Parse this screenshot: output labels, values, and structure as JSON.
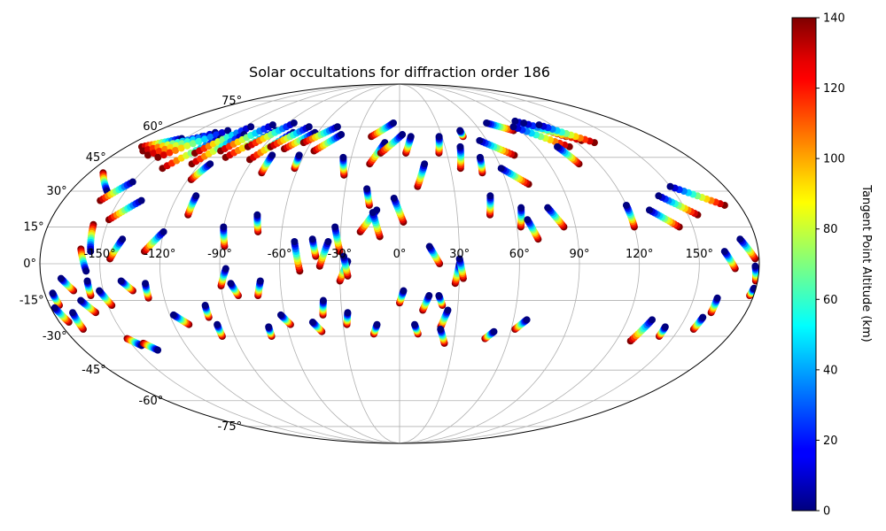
{
  "chart_data": {
    "type": "scatter",
    "projection": "mollweide",
    "title": "Solar occultations for diffraction order 186",
    "xlabel": "",
    "ylabel": "",
    "lon_ticks": [
      "-150°",
      "-120°",
      "-90°",
      "-60°",
      "-30°",
      "0°",
      "30°",
      "60°",
      "90°",
      "120°",
      "150°"
    ],
    "lon_tick_values": [
      -150,
      -120,
      -90,
      -60,
      -30,
      0,
      30,
      60,
      90,
      120,
      150
    ],
    "lat_ticks": [
      "75°",
      "60°",
      "45°",
      "30°",
      "15°",
      "0°",
      "-15°",
      "-30°",
      "-45°",
      "-60°",
      "-75°"
    ],
    "lat_tick_values": [
      75,
      60,
      45,
      30,
      15,
      0,
      -15,
      -30,
      -45,
      -60,
      -75
    ],
    "grid": true,
    "colorbar": {
      "label": "Tangent Point Altitude (km)",
      "range": [
        0,
        140
      ],
      "ticks": [
        "0",
        "20",
        "40",
        "60",
        "80",
        "100",
        "120",
        "140"
      ],
      "tick_values": [
        0,
        20,
        40,
        60,
        80,
        100,
        120,
        140
      ],
      "colormap": "jet"
    },
    "occultations": [
      {
        "lon_start": -172,
        "lat_start": 38,
        "lon_end": -160,
        "lat_end": 30
      },
      {
        "lon_start": -170,
        "lat_start": 50,
        "lon_end": -152,
        "lat_end": 54
      },
      {
        "lon_start": -165,
        "lat_start": 48,
        "lon_end": -140,
        "lat_end": 55
      },
      {
        "lon_start": -158,
        "lat_start": 46,
        "lon_end": -135,
        "lat_end": 57
      },
      {
        "lon_start": -150,
        "lat_start": 45,
        "lon_end": -128,
        "lat_end": 58
      },
      {
        "lon_start": -140,
        "lat_start": 40,
        "lon_end": -125,
        "lat_end": 54
      },
      {
        "lon_start": -130,
        "lat_start": 47,
        "lon_end": -115,
        "lat_end": 60
      },
      {
        "lon_start": -125,
        "lat_start": 42,
        "lon_end": -112,
        "lat_end": 56
      },
      {
        "lon_start": -115,
        "lat_start": 48,
        "lon_end": -100,
        "lat_end": 61
      },
      {
        "lon_start": -108,
        "lat_start": 45,
        "lon_end": -92,
        "lat_end": 58
      },
      {
        "lon_start": -100,
        "lat_start": 50,
        "lon_end": -85,
        "lat_end": 62
      },
      {
        "lon_start": -92,
        "lat_start": 44,
        "lon_end": -78,
        "lat_end": 57
      },
      {
        "lon_start": -85,
        "lat_start": 50,
        "lon_end": -70,
        "lat_end": 60
      },
      {
        "lon_start": -75,
        "lat_start": 49,
        "lon_end": -62,
        "lat_end": 57
      },
      {
        "lon_start": -65,
        "lat_start": 52,
        "lon_end": -48,
        "lat_end": 60
      },
      {
        "lon_start": -55,
        "lat_start": 48,
        "lon_end": -42,
        "lat_end": 56
      },
      {
        "lon_start": -160,
        "lat_start": 6,
        "lon_end": -157,
        "lat_end": -3
      },
      {
        "lon_start": -157,
        "lat_start": 16,
        "lon_end": -155,
        "lat_end": 5
      },
      {
        "lon_start": -160,
        "lat_start": 26,
        "lon_end": -150,
        "lat_end": 34
      },
      {
        "lon_start": -150,
        "lat_start": 18,
        "lon_end": -138,
        "lat_end": 26
      },
      {
        "lon_start": -145,
        "lat_start": 2,
        "lon_end": -140,
        "lat_end": 10
      },
      {
        "lon_start": -128,
        "lat_start": 5,
        "lon_end": -120,
        "lat_end": 13
      },
      {
        "lon_start": -110,
        "lat_start": 20,
        "lon_end": -110,
        "lat_end": 28
      },
      {
        "lon_start": -118,
        "lat_start": 35,
        "lon_end": -114,
        "lat_end": 42
      },
      {
        "lon_start": -88,
        "lat_start": 7,
        "lon_end": -90,
        "lat_end": 15
      },
      {
        "lon_start": -80,
        "lat_start": 38,
        "lon_end": -80,
        "lat_end": 46
      },
      {
        "lon_start": -72,
        "lat_start": 13,
        "lon_end": -74,
        "lat_end": 20
      },
      {
        "lon_start": -62,
        "lat_start": 40,
        "lon_end": -63,
        "lat_end": 46
      },
      {
        "lon_start": -50,
        "lat_start": -3,
        "lon_end": -53,
        "lat_end": 9
      },
      {
        "lon_start": -42,
        "lat_start": 3,
        "lon_end": -44,
        "lat_end": 10
      },
      {
        "lon_start": -40,
        "lat_start": -1,
        "lon_end": -36,
        "lat_end": 9
      },
      {
        "lon_start": -30,
        "lat_start": 5,
        "lon_end": -33,
        "lat_end": 15
      },
      {
        "lon_start": -30,
        "lat_start": -7,
        "lon_end": -26,
        "lat_end": 1
      },
      {
        "lon_start": -26,
        "lat_start": -5,
        "lon_end": -28,
        "lat_end": 3
      },
      {
        "lon_start": -32,
        "lat_start": 37,
        "lon_end": -35,
        "lat_end": 45
      },
      {
        "lon_start": -20,
        "lat_start": 13,
        "lon_end": -12,
        "lat_end": 22
      },
      {
        "lon_start": -10,
        "lat_start": 11,
        "lon_end": -14,
        "lat_end": 21
      },
      {
        "lon_start": -16,
        "lat_start": 24,
        "lon_end": -18,
        "lat_end": 31
      },
      {
        "lon_start": -18,
        "lat_start": 42,
        "lon_end": -10,
        "lat_end": 52
      },
      {
        "lon_start": -12,
        "lat_start": 47,
        "lon_end": 2,
        "lat_end": 56
      },
      {
        "lon_start": -20,
        "lat_start": 55,
        "lon_end": -5,
        "lat_end": 62
      },
      {
        "lon_start": 2,
        "lat_start": 17,
        "lon_end": -3,
        "lat_end": 27
      },
      {
        "lon_start": 0,
        "lat_start": -16,
        "lon_end": 2,
        "lat_end": -11
      },
      {
        "lon_start": 4,
        "lat_start": 47,
        "lon_end": 8,
        "lat_end": 55
      },
      {
        "lon_start": 10,
        "lat_start": 32,
        "lon_end": 15,
        "lat_end": 42
      },
      {
        "lon_start": 20,
        "lat_start": 0,
        "lon_end": 15,
        "lat_end": 7
      },
      {
        "lon_start": 12,
        "lat_start": -19,
        "lon_end": 15,
        "lat_end": -13
      },
      {
        "lon_start": 22,
        "lat_start": -17,
        "lon_end": 20,
        "lat_end": -13
      },
      {
        "lon_start": 28,
        "lat_start": -8,
        "lon_end": 30,
        "lat_end": 0
      },
      {
        "lon_start": 32,
        "lat_start": -6,
        "lon_end": 30,
        "lat_end": 2
      },
      {
        "lon_start": 22,
        "lat_start": -26,
        "lon_end": 25,
        "lat_end": -19
      },
      {
        "lon_start": 25,
        "lat_start": -33,
        "lon_end": 22,
        "lat_end": -27
      },
      {
        "lon_start": 25,
        "lat_start": 47,
        "lon_end": 28,
        "lat_end": 55
      },
      {
        "lon_start": 36,
        "lat_start": 40,
        "lon_end": 40,
        "lat_end": 50
      },
      {
        "lon_start": 45,
        "lat_start": 55,
        "lon_end": 45,
        "lat_end": 58
      },
      {
        "lon_start": 47,
        "lat_start": 20,
        "lon_end": 49,
        "lat_end": 28
      },
      {
        "lon_start": 48,
        "lat_start": 38,
        "lon_end": 50,
        "lat_end": 45
      },
      {
        "lon_start": 47,
        "lat_start": -31,
        "lon_end": 51,
        "lat_end": -28
      },
      {
        "lon_start": 62,
        "lat_start": 15,
        "lon_end": 64,
        "lat_end": 23
      },
      {
        "lon_start": 62,
        "lat_start": -27,
        "lon_end": 67,
        "lat_end": -23
      },
      {
        "lon_start": 70,
        "lat_start": 10,
        "lon_end": 66,
        "lat_end": 18
      },
      {
        "lon_start": 72,
        "lat_start": 33,
        "lon_end": 60,
        "lat_end": 40
      },
      {
        "lon_start": 72,
        "lat_start": 46,
        "lon_end": 55,
        "lat_end": 53
      },
      {
        "lon_start": 84,
        "lat_start": 15,
        "lon_end": 78,
        "lat_end": 23
      },
      {
        "lon_start": 85,
        "lat_start": 58,
        "lon_end": 70,
        "lat_end": 62
      },
      {
        "lon_start": 112,
        "lat_start": 50,
        "lon_end": 88,
        "lat_end": 60
      },
      {
        "lon_start": 118,
        "lat_start": 55,
        "lon_end": 95,
        "lat_end": 63
      },
      {
        "lon_start": 125,
        "lat_start": 53,
        "lon_end": 100,
        "lat_end": 62
      },
      {
        "lon_start": 132,
        "lat_start": 52,
        "lon_end": 110,
        "lat_end": 61
      },
      {
        "lon_start": 108,
        "lat_start": 42,
        "lon_end": 104,
        "lat_end": 50
      },
      {
        "lon_start": 120,
        "lat_start": 15,
        "lon_end": 120,
        "lat_end": 24
      },
      {
        "lon_start": 143,
        "lat_start": 15,
        "lon_end": 131,
        "lat_end": 22
      },
      {
        "lon_start": 155,
        "lat_start": 20,
        "lon_end": 140,
        "lat_end": 28
      },
      {
        "lon_start": 172,
        "lat_start": 24,
        "lon_end": 150,
        "lat_end": 32
      },
      {
        "lon_start": 128,
        "lat_start": -32,
        "lon_end": 133,
        "lat_end": -23
      },
      {
        "lon_start": 142,
        "lat_start": -30,
        "lon_end": 142,
        "lat_end": -26
      },
      {
        "lon_start": 158,
        "lat_start": -27,
        "lon_end": 159,
        "lat_end": -22
      },
      {
        "lon_start": 162,
        "lat_start": -20,
        "lon_end": 162,
        "lat_end": -14
      },
      {
        "lon_start": 168,
        "lat_start": -2,
        "lon_end": 163,
        "lat_end": 5
      },
      {
        "lon_start": 178,
        "lat_start": 2,
        "lon_end": 172,
        "lat_end": 10
      },
      {
        "lon_start": 179,
        "lat_start": -7,
        "lon_end": 178,
        "lat_end": -1
      },
      {
        "lon_start": 178,
        "lat_start": -13,
        "lon_end": 179,
        "lat_end": -10
      },
      {
        "lon_start": -175,
        "lat_start": -17,
        "lon_end": -176,
        "lat_end": -12
      },
      {
        "lon_start": -175,
        "lat_start": -24,
        "lon_end": -178,
        "lat_end": -18
      },
      {
        "lon_start": -170,
        "lat_start": -27,
        "lon_end": -170,
        "lat_end": -20
      },
      {
        "lon_start": -165,
        "lat_start": -11,
        "lon_end": -170,
        "lat_end": -6
      },
      {
        "lon_start": -158,
        "lat_start": -20,
        "lon_end": -163,
        "lat_end": -15
      },
      {
        "lon_start": -157,
        "lat_start": -13,
        "lon_end": -157,
        "lat_end": -7
      },
      {
        "lon_start": -148,
        "lat_start": -17,
        "lon_end": -152,
        "lat_end": -11
      },
      {
        "lon_start": -150,
        "lat_start": -31,
        "lon_end": -145,
        "lat_end": -34
      },
      {
        "lon_start": -143,
        "lat_start": -33,
        "lon_end": -138,
        "lat_end": -36
      },
      {
        "lon_start": -135,
        "lat_start": -11,
        "lon_end": -140,
        "lat_end": -7
      },
      {
        "lon_start": -128,
        "lat_start": -14,
        "lon_end": -128,
        "lat_end": -8
      },
      {
        "lon_start": -112,
        "lat_start": -25,
        "lon_end": -118,
        "lat_end": -21
      },
      {
        "lon_start": -100,
        "lat_start": -22,
        "lon_end": -100,
        "lat_end": -17
      },
      {
        "lon_start": -97,
        "lat_start": -30,
        "lon_end": -97,
        "lat_end": -25
      },
      {
        "lon_start": -90,
        "lat_start": -9,
        "lon_end": -87,
        "lat_end": -2
      },
      {
        "lon_start": -82,
        "lat_start": -13,
        "lon_end": -85,
        "lat_end": -8
      },
      {
        "lon_start": -72,
        "lat_start": -13,
        "lon_end": -70,
        "lat_end": -7
      },
      {
        "lon_start": -70,
        "lat_start": -30,
        "lon_end": -70,
        "lat_end": -26
      },
      {
        "lon_start": -58,
        "lat_start": -25,
        "lon_end": -62,
        "lat_end": -21
      },
      {
        "lon_start": -42,
        "lat_start": -28,
        "lon_end": -46,
        "lat_end": -24
      },
      {
        "lon_start": -40,
        "lat_start": -21,
        "lon_end": -39,
        "lat_end": -15
      },
      {
        "lon_start": -28,
        "lat_start": -25,
        "lon_end": -27,
        "lat_end": -20
      },
      {
        "lon_start": -14,
        "lat_start": -29,
        "lon_end": -12,
        "lat_end": -25
      },
      {
        "lon_start": 10,
        "lat_start": -29,
        "lon_end": 8,
        "lat_end": -25
      }
    ]
  }
}
